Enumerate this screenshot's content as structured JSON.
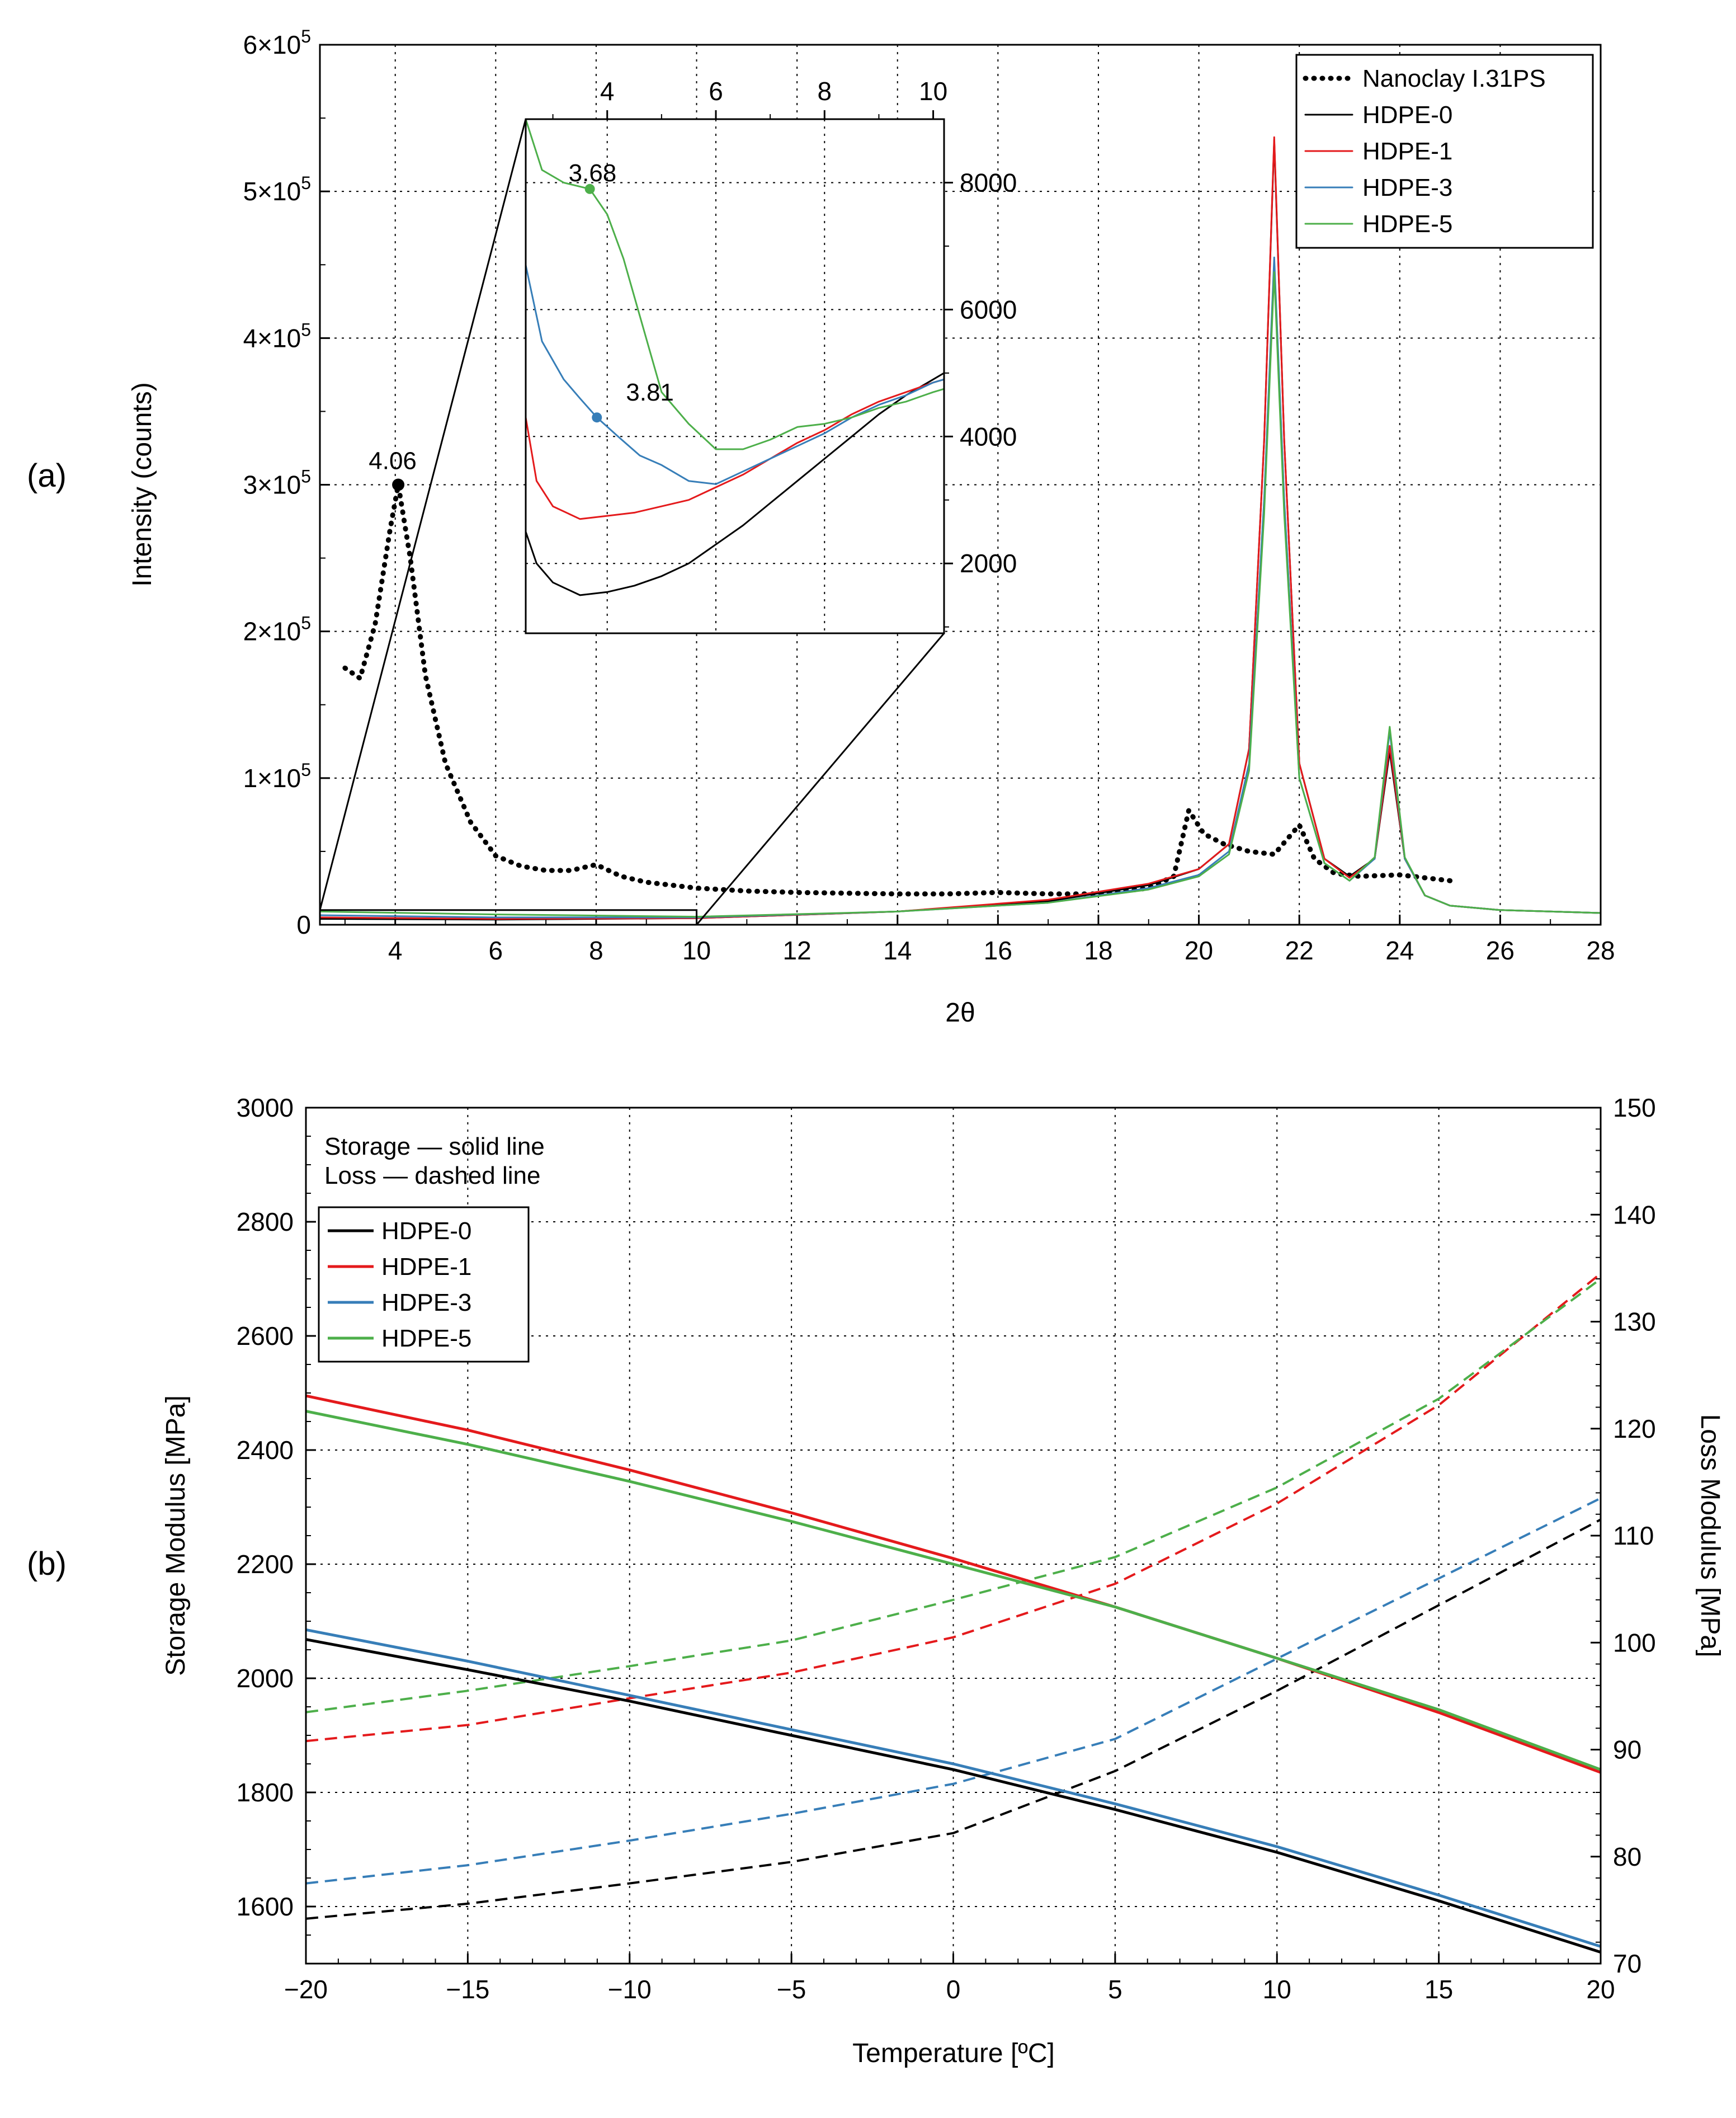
{
  "colors": {
    "nanoclay": "#000000",
    "hdpe0": "#000000",
    "hdpe1": "#e41a1c",
    "hdpe3": "#377eb8",
    "hdpe5": "#4daf4a"
  },
  "chart_data": [
    {
      "id": "a",
      "panel_label": "(a)",
      "type": "line",
      "xlabel": "2θ",
      "ylabel": "Intensity (counts)",
      "xlim": [
        2.5,
        28
      ],
      "ylim": [
        0,
        600000
      ],
      "xticks": [
        4,
        6,
        8,
        10,
        12,
        14,
        16,
        18,
        20,
        22,
        24,
        26,
        28
      ],
      "yticks": [
        {
          "value": 0,
          "mant": "0",
          "exp": ""
        },
        {
          "value": 100000,
          "mant": "1×10",
          "exp": "5"
        },
        {
          "value": 200000,
          "mant": "2×10",
          "exp": "5"
        },
        {
          "value": 300000,
          "mant": "3×10",
          "exp": "5"
        },
        {
          "value": 400000,
          "mant": "4×10",
          "exp": "5"
        },
        {
          "value": 500000,
          "mant": "5×10",
          "exp": "5"
        },
        {
          "value": 600000,
          "mant": "6×10",
          "exp": "5"
        }
      ],
      "grid": true,
      "legend_position": "top-right",
      "series": [
        {
          "name": "Nanoclay I.31PS",
          "color": "nanoclay",
          "dash": "dotted",
          "x": [
            3.0,
            3.3,
            3.6,
            3.9,
            4.06,
            4.3,
            4.6,
            5.0,
            5.5,
            6.0,
            6.5,
            7.0,
            7.5,
            8.0,
            8.5,
            9.0,
            10,
            11,
            12,
            13,
            14,
            15,
            16,
            17,
            18,
            19,
            19.5,
            19.8,
            20.1,
            20.5,
            21.0,
            21.5,
            22.0,
            22.3,
            22.7,
            23.2,
            24,
            25
          ],
          "values": [
            175000,
            168000,
            205000,
            270000,
            300000,
            250000,
            170000,
            110000,
            70000,
            47000,
            40000,
            37000,
            37000,
            41000,
            33000,
            29000,
            25000,
            23000,
            22000,
            21500,
            21000,
            21000,
            22000,
            21000,
            21000,
            25000,
            33000,
            78000,
            62000,
            55000,
            50000,
            48000,
            68000,
            45000,
            35000,
            33000,
            34000,
            30000
          ]
        },
        {
          "name": "HDPE-0",
          "color": "hdpe0",
          "x": [
            2.5,
            6,
            10,
            14,
            17,
            19,
            20,
            20.6,
            21.0,
            21.3,
            21.5,
            21.7,
            22.0,
            22.5,
            23.0,
            23.5,
            23.8,
            24.1,
            24.5,
            25,
            26,
            28
          ],
          "values": [
            4000,
            3500,
            4500,
            9000,
            16000,
            27000,
            38000,
            55000,
            120000,
            330000,
            535000,
            330000,
            110000,
            45000,
            33000,
            45000,
            118000,
            45000,
            20000,
            13000,
            10000,
            8000
          ]
        },
        {
          "name": "HDPE-1",
          "color": "hdpe1",
          "x": [
            2.5,
            6,
            10,
            14,
            17,
            19,
            20,
            20.6,
            21.0,
            21.3,
            21.5,
            21.7,
            22.0,
            22.5,
            23.0,
            23.5,
            23.8,
            24.1,
            24.5,
            25,
            26,
            28
          ],
          "values": [
            5000,
            4000,
            4500,
            9000,
            17000,
            28000,
            38000,
            55000,
            120000,
            330000,
            537000,
            330000,
            110000,
            45000,
            32000,
            45000,
            122000,
            45000,
            20000,
            13000,
            10000,
            8000
          ]
        },
        {
          "name": "HDPE-3",
          "color": "hdpe3",
          "x": [
            2.5,
            6,
            10,
            14,
            17,
            19,
            20,
            20.6,
            21.0,
            21.3,
            21.5,
            21.7,
            22.0,
            22.5,
            23.0,
            23.5,
            23.8,
            24.1,
            24.5,
            25,
            26,
            28
          ],
          "values": [
            6500,
            5000,
            5000,
            9000,
            15000,
            25000,
            34000,
            50000,
            110000,
            290000,
            455000,
            290000,
            100000,
            42000,
            30000,
            45000,
            132000,
            45000,
            20000,
            13000,
            10000,
            8000
          ]
        },
        {
          "name": "HDPE-5",
          "color": "hdpe5",
          "x": [
            2.5,
            6,
            10,
            14,
            17,
            19,
            20,
            20.6,
            21.0,
            21.3,
            21.5,
            21.7,
            22.0,
            22.5,
            23.0,
            23.5,
            23.8,
            24.1,
            24.5,
            25,
            26,
            28
          ],
          "values": [
            9000,
            7000,
            5500,
            9000,
            15000,
            24000,
            33000,
            48000,
            105000,
            280000,
            445000,
            280000,
            100000,
            42000,
            30000,
            46000,
            135000,
            46000,
            20000,
            13000,
            10000,
            8000
          ]
        }
      ],
      "annotations": [
        {
          "text": "4.06",
          "x": 4.06,
          "y": 300000,
          "series": "Nanoclay I.31PS"
        }
      ],
      "inset": {
        "type": "line",
        "zoom_source": {
          "x": [
            2.5,
            10
          ],
          "y": [
            0,
            10000
          ]
        },
        "xlim": [
          2.5,
          10.2
        ],
        "ylim": [
          900,
          9000
        ],
        "xticks": [
          4,
          6,
          8,
          10
        ],
        "yticks": [
          2000,
          4000,
          6000,
          8000
        ],
        "minor_yticks": [
          1000,
          3000,
          5000,
          7000
        ],
        "x_axis": "top",
        "y_axis": "right",
        "series": [
          {
            "name": "HDPE-0",
            "color": "hdpe0",
            "x": [
              2.5,
              2.7,
              3.0,
              3.5,
              4.0,
              4.5,
              5.0,
              5.5,
              6.0,
              6.5,
              7.0,
              7.5,
              8.0,
              8.5,
              9.0,
              9.5,
              10.0,
              10.2
            ],
            "values": [
              2500,
              2000,
              1700,
              1500,
              1550,
              1650,
              1800,
              2000,
              2300,
              2600,
              2950,
              3300,
              3650,
              4000,
              4350,
              4650,
              4900,
              5000
            ]
          },
          {
            "name": "HDPE-1",
            "color": "hdpe1",
            "x": [
              2.5,
              2.7,
              3.0,
              3.5,
              4.0,
              4.5,
              5.0,
              5.5,
              6.0,
              6.5,
              7.0,
              7.5,
              8.0,
              8.5,
              9.0,
              9.5,
              10.0,
              10.2
            ],
            "values": [
              4300,
              3300,
              2900,
              2700,
              2750,
              2800,
              2900,
              3000,
              3200,
              3400,
              3650,
              3900,
              4100,
              4350,
              4550,
              4700,
              4850,
              4900
            ]
          },
          {
            "name": "HDPE-3",
            "color": "hdpe3",
            "x": [
              2.5,
              2.8,
              3.2,
              3.5,
              3.81,
              4.2,
              4.6,
              5.0,
              5.5,
              6.0,
              6.5,
              7.0,
              7.5,
              8.0,
              8.5,
              9.0,
              9.5,
              10.0,
              10.2
            ],
            "values": [
              6700,
              5500,
              4900,
              4600,
              4300,
              4000,
              3700,
              3550,
              3300,
              3250,
              3450,
              3650,
              3850,
              4050,
              4300,
              4500,
              4650,
              4850,
              4900
            ]
          },
          {
            "name": "HDPE-5",
            "color": "hdpe5",
            "x": [
              2.5,
              2.8,
              3.2,
              3.68,
              4.0,
              4.3,
              4.6,
              5.0,
              5.5,
              6.0,
              6.5,
              7.0,
              7.5,
              8.0,
              8.5,
              9.0,
              9.5,
              10.0,
              10.2
            ],
            "values": [
              9000,
              8200,
              8000,
              7900,
              7500,
              6800,
              5900,
              4700,
              4200,
              3800,
              3800,
              3950,
              4150,
              4200,
              4300,
              4450,
              4550,
              4700,
              4750
            ]
          }
        ],
        "annotations": [
          {
            "text": "3.68",
            "x": 3.68,
            "y": 7900,
            "series": "HDPE-5"
          },
          {
            "text": "3.81",
            "x": 3.81,
            "y": 4300,
            "series": "HDPE-3"
          }
        ]
      }
    },
    {
      "id": "b",
      "panel_label": "(b)",
      "type": "line",
      "xlabel": "Temperature [ºC]",
      "ylabel": "Storage Modulus [MPa]",
      "ylabel_right": "Loss Modulus [MPa]",
      "xlim": [
        -20,
        20
      ],
      "ylim": [
        1500,
        3000
      ],
      "ylim_right": [
        70,
        150
      ],
      "xticks": [
        {
          "value": -20,
          "label": "−20"
        },
        {
          "value": -15,
          "label": "−15"
        },
        {
          "value": -10,
          "label": "−10"
        },
        {
          "value": -5,
          "label": "−5"
        },
        {
          "value": 0,
          "label": "0"
        },
        {
          "value": 5,
          "label": "5"
        },
        {
          "value": 10,
          "label": "10"
        },
        {
          "value": 15,
          "label": "15"
        },
        {
          "value": 20,
          "label": "20"
        }
      ],
      "yticks": [
        1600,
        1800,
        2000,
        2200,
        2400,
        2600,
        2800,
        3000
      ],
      "yticks_right": [
        70,
        80,
        90,
        100,
        110,
        120,
        130,
        140,
        150
      ],
      "grid": true,
      "legend_position": "top-left",
      "legend_note": [
        "Storage — solid line",
        "Loss — dashed line"
      ],
      "legend_entries": [
        "HDPE-0",
        "HDPE-1",
        "HDPE-3",
        "HDPE-5"
      ],
      "storage_series": [
        {
          "name": "HDPE-0",
          "color": "hdpe0",
          "x": [
            -20,
            -15,
            -10,
            -5,
            0,
            5,
            10,
            15,
            20
          ],
          "values": [
            2068,
            2015,
            1960,
            1900,
            1840,
            1770,
            1695,
            1610,
            1520
          ]
        },
        {
          "name": "HDPE-1",
          "color": "hdpe1",
          "x": [
            -20,
            -15,
            -10,
            -5,
            0,
            5,
            10,
            15,
            20
          ],
          "values": [
            2495,
            2435,
            2365,
            2290,
            2210,
            2125,
            2035,
            1940,
            1835
          ]
        },
        {
          "name": "HDPE-3",
          "color": "hdpe3",
          "x": [
            -20,
            -15,
            -10,
            -5,
            0,
            5,
            10,
            15,
            20
          ],
          "values": [
            2085,
            2030,
            1970,
            1910,
            1850,
            1780,
            1705,
            1620,
            1530
          ]
        },
        {
          "name": "HDPE-5",
          "color": "hdpe5",
          "x": [
            -20,
            -15,
            -10,
            -5,
            0,
            5,
            10,
            15,
            20
          ],
          "values": [
            2468,
            2410,
            2345,
            2275,
            2200,
            2125,
            2035,
            1945,
            1840
          ]
        }
      ],
      "loss_series": [
        {
          "name": "HDPE-0",
          "color": "hdpe0",
          "x": [
            -20,
            -15,
            -10,
            -5,
            0,
            5,
            10,
            15,
            20
          ],
          "values": [
            74.2,
            75.6,
            77.5,
            79.5,
            82.2,
            88,
            95.5,
            103.5,
            111.5
          ]
        },
        {
          "name": "HDPE-1",
          "color": "hdpe1",
          "x": [
            -20,
            -15,
            -10,
            -5,
            0,
            5,
            10,
            15,
            20
          ],
          "values": [
            90.8,
            92.3,
            94.8,
            97.2,
            100.5,
            105.5,
            113,
            122.2,
            134.5
          ]
        },
        {
          "name": "HDPE-3",
          "color": "hdpe3",
          "x": [
            -20,
            -15,
            -10,
            -5,
            0,
            5,
            10,
            15,
            20
          ],
          "values": [
            77.5,
            79.2,
            81.5,
            84,
            86.8,
            91,
            98.5,
            106,
            113.5
          ]
        },
        {
          "name": "HDPE-5",
          "color": "hdpe5",
          "x": [
            -20,
            -15,
            -10,
            -5,
            0,
            5,
            10,
            15,
            20
          ],
          "values": [
            93.5,
            95.5,
            97.8,
            100.2,
            104,
            108,
            114.5,
            122.8,
            134
          ]
        }
      ]
    }
  ]
}
